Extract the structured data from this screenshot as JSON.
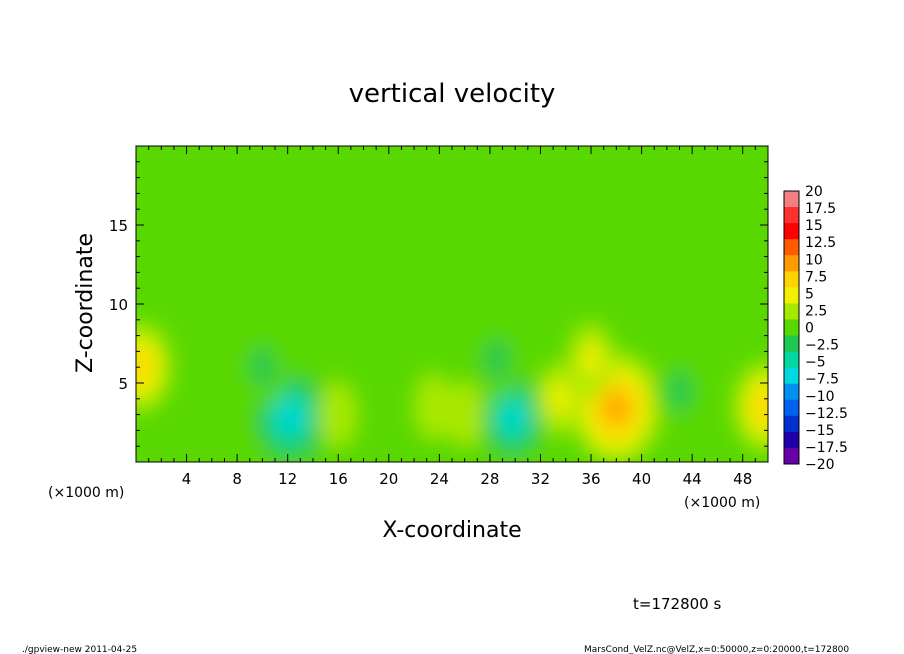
{
  "chart_data": {
    "type": "heatmap",
    "title": "vertical velocity",
    "xlabel": "X-coordinate",
    "ylabel": "Z-coordinate",
    "x_unit_note": "(×1000 m)",
    "x_unit_note_right": "(×1000 m)",
    "xlim": [
      0,
      50
    ],
    "ylim": [
      0,
      20
    ],
    "x_ticks": [
      4,
      8,
      12,
      16,
      20,
      24,
      28,
      32,
      36,
      40,
      44,
      48
    ],
    "y_ticks": [
      5,
      10,
      15
    ],
    "colorbar_levels": [
      20,
      17.5,
      15,
      12.5,
      10,
      7.5,
      5,
      2.5,
      0,
      -2.5,
      -5,
      -7.5,
      -10,
      -12.5,
      -15,
      -17.5,
      -20
    ],
    "colorbar_labels": [
      "20",
      "17.5",
      "15",
      "12.5",
      "10",
      "7.5",
      "5",
      "2.5",
      "0",
      "−2.5",
      "−5",
      "−7.5",
      "−10",
      "−12.5",
      "−15",
      "−17.5",
      "−20"
    ],
    "colorbar_colors": [
      "#f28080",
      "#ff3030",
      "#ff0000",
      "#ff5a00",
      "#ff9a00",
      "#ffd200",
      "#f0f000",
      "#a8e800",
      "#58d800",
      "#20c850",
      "#00d8a0",
      "#00d8e0",
      "#0090f0",
      "#0060f0",
      "#0030d0",
      "#2000a8",
      "#6800a8"
    ],
    "features": [
      {
        "x": 12.2,
        "z": 2.8,
        "w": -11
      },
      {
        "x": 29.8,
        "z": 2.8,
        "w": -9
      },
      {
        "x": 38.0,
        "z": 3.4,
        "w": 11
      },
      {
        "x": 0.3,
        "z": 6.0,
        "w": 7
      },
      {
        "x": 49.8,
        "z": 3.5,
        "w": 7
      },
      {
        "x": 10.0,
        "z": 6.0,
        "w": -5
      },
      {
        "x": 28.5,
        "z": 6.5,
        "w": -5
      },
      {
        "x": 43.0,
        "z": 4.5,
        "w": -5
      },
      {
        "x": 36.0,
        "z": 6.5,
        "w": 4
      },
      {
        "x": 33.5,
        "z": 4.0,
        "w": 4
      },
      {
        "x": 16.0,
        "z": 3.0,
        "w": 3
      },
      {
        "x": 23.5,
        "z": 3.5,
        "w": 3
      },
      {
        "x": 26.0,
        "z": 3.0,
        "w": 3
      }
    ]
  },
  "time_label": "t=172800 s",
  "footer_left": "./gpview-new  2011-04-25",
  "footer_right": "MarsCond_VelZ.nc@VelZ,x=0:50000,z=0:20000,t=172800"
}
